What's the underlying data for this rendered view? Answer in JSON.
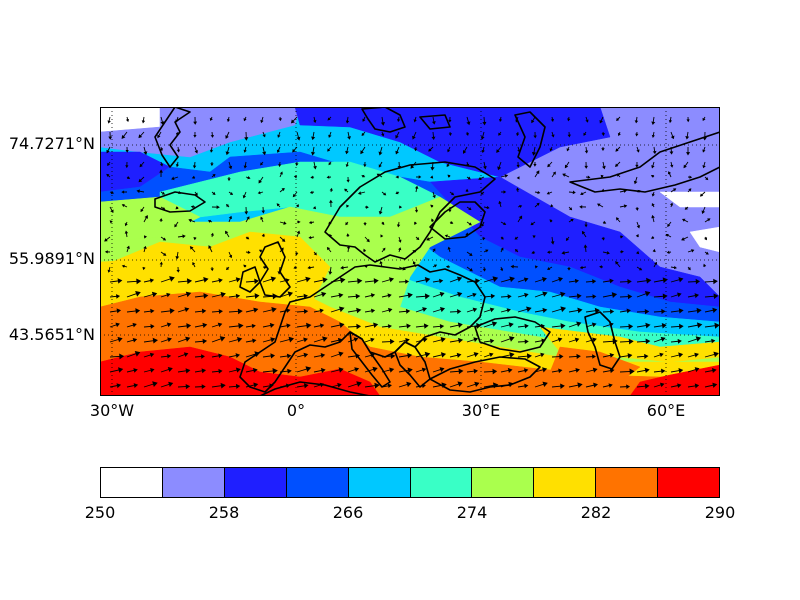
{
  "map": {
    "lat_labels": [
      "74.7271°N",
      "55.9891°N",
      "43.5651°N"
    ],
    "lon_labels": [
      "30°W",
      "0°",
      "30°E",
      "60°E"
    ],
    "lat_values": [
      74.7271,
      55.9891,
      43.5651
    ],
    "lon_values": [
      -30,
      0,
      30,
      60
    ],
    "lat_range": [
      34.0,
      80.0
    ],
    "lon_range": [
      -32.0,
      69.0
    ],
    "grid": "dotted",
    "layers": [
      "filled-contours",
      "wind-vectors",
      "coastlines"
    ]
  },
  "colorbar": {
    "orientation": "horizontal",
    "tick_labels": [
      "250",
      "258",
      "266",
      "274",
      "282",
      "290"
    ],
    "levels": [
      250,
      254,
      258,
      262,
      266,
      270,
      274,
      278,
      282,
      286,
      290
    ],
    "colors": [
      "#ffffff",
      "#8c8cff",
      "#1f1fff",
      "#0050ff",
      "#00c8ff",
      "#39ffc6",
      "#aaff4d",
      "#ffe000",
      "#ff7300",
      "#ff0000"
    ]
  }
}
